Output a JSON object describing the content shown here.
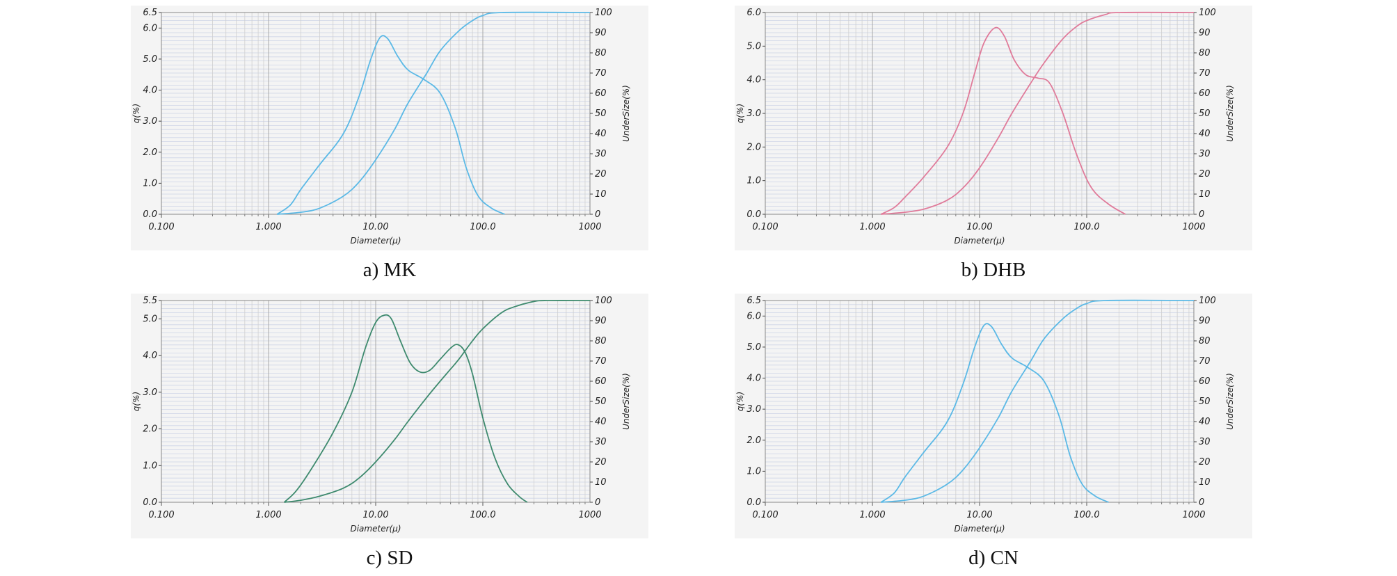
{
  "chart_data": [
    {
      "id": "a",
      "type": "line",
      "caption": "a)  MK",
      "xlabel": "Diameter(µ)",
      "ylabel_left": "q(%)",
      "ylabel_right": "UnderSize(%)",
      "x_scale": "log",
      "x_ticks": [
        "0.100",
        "1.000",
        "10.00",
        "100.0",
        "1000"
      ],
      "xlim": [
        0.1,
        1000
      ],
      "y_left_ticks": [
        "0.0",
        "1.0",
        "2.0",
        "3.0",
        "4.0",
        "5.0",
        "6.0",
        "6.5"
      ],
      "ylim_left": [
        0,
        6.5
      ],
      "y_right_ticks": [
        "0",
        "10",
        "20",
        "30",
        "40",
        "50",
        "60",
        "70",
        "80",
        "90",
        "100"
      ],
      "ylim_right": [
        0,
        100
      ],
      "color": "#5bb9e6",
      "series": [
        {
          "axis": "left",
          "points": [
            [
              1.2,
              0
            ],
            [
              1.6,
              0.3
            ],
            [
              2,
              0.8
            ],
            [
              3,
              1.6
            ],
            [
              5,
              2.6
            ],
            [
              7,
              3.8
            ],
            [
              9,
              5
            ],
            [
              11,
              5.7
            ],
            [
              13,
              5.65
            ],
            [
              16,
              5.1
            ],
            [
              20,
              4.65
            ],
            [
              28,
              4.35
            ],
            [
              40,
              3.9
            ],
            [
              55,
              2.8
            ],
            [
              70,
              1.5
            ],
            [
              90,
              0.6
            ],
            [
              120,
              0.2
            ],
            [
              160,
              0
            ]
          ]
        },
        {
          "axis": "right",
          "points": [
            [
              1.2,
              0
            ],
            [
              2,
              1
            ],
            [
              3,
              3
            ],
            [
              5,
              9
            ],
            [
              7,
              16
            ],
            [
              10,
              27
            ],
            [
              15,
              42
            ],
            [
              20,
              55
            ],
            [
              30,
              70
            ],
            [
              40,
              81
            ],
            [
              60,
              91
            ],
            [
              80,
              96
            ],
            [
              100,
              98.5
            ],
            [
              150,
              100
            ],
            [
              1000,
              100
            ]
          ]
        }
      ]
    },
    {
      "id": "b",
      "type": "line",
      "caption": "b)  DHB",
      "xlabel": "Diameter(µ)",
      "ylabel_left": "q(%)",
      "ylabel_right": "UnderSize(%)",
      "x_scale": "log",
      "x_ticks": [
        "0.100",
        "1.000",
        "10.00",
        "100.0",
        "1000"
      ],
      "xlim": [
        0.1,
        1000
      ],
      "y_left_ticks": [
        "0.0",
        "1.0",
        "2.0",
        "3.0",
        "4.0",
        "5.0",
        "6.0"
      ],
      "ylim_left": [
        0,
        6.0
      ],
      "y_right_ticks": [
        "0",
        "10",
        "20",
        "30",
        "40",
        "50",
        "60",
        "70",
        "80",
        "90",
        "100"
      ],
      "ylim_right": [
        0,
        100
      ],
      "color": "#e07b9a",
      "series": [
        {
          "axis": "left",
          "points": [
            [
              1.2,
              0
            ],
            [
              1.6,
              0.2
            ],
            [
              2,
              0.5
            ],
            [
              3,
              1.1
            ],
            [
              5,
              2
            ],
            [
              7,
              3
            ],
            [
              9,
              4.2
            ],
            [
              11,
              5.1
            ],
            [
              14,
              5.55
            ],
            [
              17,
              5.3
            ],
            [
              21,
              4.6
            ],
            [
              27,
              4.15
            ],
            [
              35,
              4.05
            ],
            [
              45,
              3.9
            ],
            [
              60,
              3
            ],
            [
              80,
              1.8
            ],
            [
              110,
              0.8
            ],
            [
              160,
              0.3
            ],
            [
              230,
              0
            ]
          ]
        },
        {
          "axis": "right",
          "points": [
            [
              1.2,
              0
            ],
            [
              2,
              1
            ],
            [
              3,
              2.5
            ],
            [
              5,
              7
            ],
            [
              7,
              13
            ],
            [
              10,
              23
            ],
            [
              15,
              38
            ],
            [
              20,
              50
            ],
            [
              30,
              65
            ],
            [
              40,
              75
            ],
            [
              60,
              87
            ],
            [
              80,
              93
            ],
            [
              100,
              96
            ],
            [
              150,
              99
            ],
            [
              200,
              100
            ],
            [
              1000,
              100
            ]
          ]
        }
      ]
    },
    {
      "id": "c",
      "type": "line",
      "caption": "c)  SD",
      "xlabel": "Diameter(µ)",
      "ylabel_left": "q(%)",
      "ylabel_right": "UnderSize(%)",
      "x_scale": "log",
      "x_ticks": [
        "0.100",
        "1.000",
        "10.00",
        "100.0",
        "1000"
      ],
      "xlim": [
        0.1,
        1000
      ],
      "y_left_ticks": [
        "0.0",
        "1.0",
        "2.0",
        "3.0",
        "4.0",
        "5.0",
        "5.5"
      ],
      "ylim_left": [
        0,
        5.5
      ],
      "y_right_ticks": [
        "0",
        "10",
        "20",
        "30",
        "40",
        "50",
        "60",
        "70",
        "80",
        "90",
        "100"
      ],
      "ylim_right": [
        0,
        100
      ],
      "color": "#3e8a6e",
      "series": [
        {
          "axis": "left",
          "points": [
            [
              1.4,
              0
            ],
            [
              1.8,
              0.3
            ],
            [
              2.5,
              0.9
            ],
            [
              4,
              1.9
            ],
            [
              6,
              3
            ],
            [
              8,
              4.2
            ],
            [
              10,
              4.9
            ],
            [
              12,
              5.1
            ],
            [
              14,
              5
            ],
            [
              17,
              4.4
            ],
            [
              21,
              3.8
            ],
            [
              26,
              3.55
            ],
            [
              32,
              3.6
            ],
            [
              40,
              3.9
            ],
            [
              50,
              4.2
            ],
            [
              58,
              4.3
            ],
            [
              68,
              4.1
            ],
            [
              80,
              3.5
            ],
            [
              100,
              2.3
            ],
            [
              130,
              1.2
            ],
            [
              170,
              0.5
            ],
            [
              220,
              0.15
            ],
            [
              260,
              0
            ]
          ]
        },
        {
          "axis": "right",
          "points": [
            [
              1.4,
              0
            ],
            [
              2,
              1
            ],
            [
              3,
              3
            ],
            [
              5,
              7
            ],
            [
              7,
              12
            ],
            [
              10,
              20
            ],
            [
              15,
              31
            ],
            [
              20,
              40
            ],
            [
              30,
              52
            ],
            [
              40,
              60
            ],
            [
              50,
              66
            ],
            [
              60,
              71
            ],
            [
              80,
              80
            ],
            [
              100,
              86
            ],
            [
              150,
              94
            ],
            [
              200,
              97
            ],
            [
              300,
              99.5
            ],
            [
              400,
              100
            ],
            [
              1000,
              100
            ]
          ]
        }
      ]
    },
    {
      "id": "d",
      "type": "line",
      "caption": "d)  CN",
      "xlabel": "Diameter(µ)",
      "ylabel_left": "q(%)",
      "ylabel_right": "UnderSize(%)",
      "x_scale": "log",
      "x_ticks": [
        "0.100",
        "1.000",
        "10.00",
        "100.0",
        "1000"
      ],
      "xlim": [
        0.1,
        1000
      ],
      "y_left_ticks": [
        "0.0",
        "1.0",
        "2.0",
        "3.0",
        "4.0",
        "5.0",
        "6.0",
        "6.5"
      ],
      "ylim_left": [
        0,
        6.5
      ],
      "y_right_ticks": [
        "0",
        "10",
        "20",
        "30",
        "40",
        "50",
        "60",
        "70",
        "80",
        "90",
        "100"
      ],
      "ylim_right": [
        0,
        100
      ],
      "color": "#5bb9e6",
      "series": [
        {
          "axis": "left",
          "points": [
            [
              1.2,
              0
            ],
            [
              1.6,
              0.3
            ],
            [
              2,
              0.8
            ],
            [
              3,
              1.6
            ],
            [
              5,
              2.6
            ],
            [
              7,
              3.8
            ],
            [
              9,
              5
            ],
            [
              11,
              5.7
            ],
            [
              13,
              5.65
            ],
            [
              16,
              5.1
            ],
            [
              20,
              4.65
            ],
            [
              28,
              4.35
            ],
            [
              40,
              3.9
            ],
            [
              55,
              2.8
            ],
            [
              70,
              1.5
            ],
            [
              90,
              0.6
            ],
            [
              120,
              0.2
            ],
            [
              160,
              0
            ]
          ]
        },
        {
          "axis": "right",
          "points": [
            [
              1.2,
              0
            ],
            [
              2,
              1
            ],
            [
              3,
              3
            ],
            [
              5,
              9
            ],
            [
              7,
              16
            ],
            [
              10,
              27
            ],
            [
              15,
              42
            ],
            [
              20,
              55
            ],
            [
              30,
              70
            ],
            [
              40,
              81
            ],
            [
              60,
              91
            ],
            [
              80,
              96
            ],
            [
              100,
              98.5
            ],
            [
              150,
              100
            ],
            [
              1000,
              100
            ]
          ]
        }
      ]
    }
  ]
}
